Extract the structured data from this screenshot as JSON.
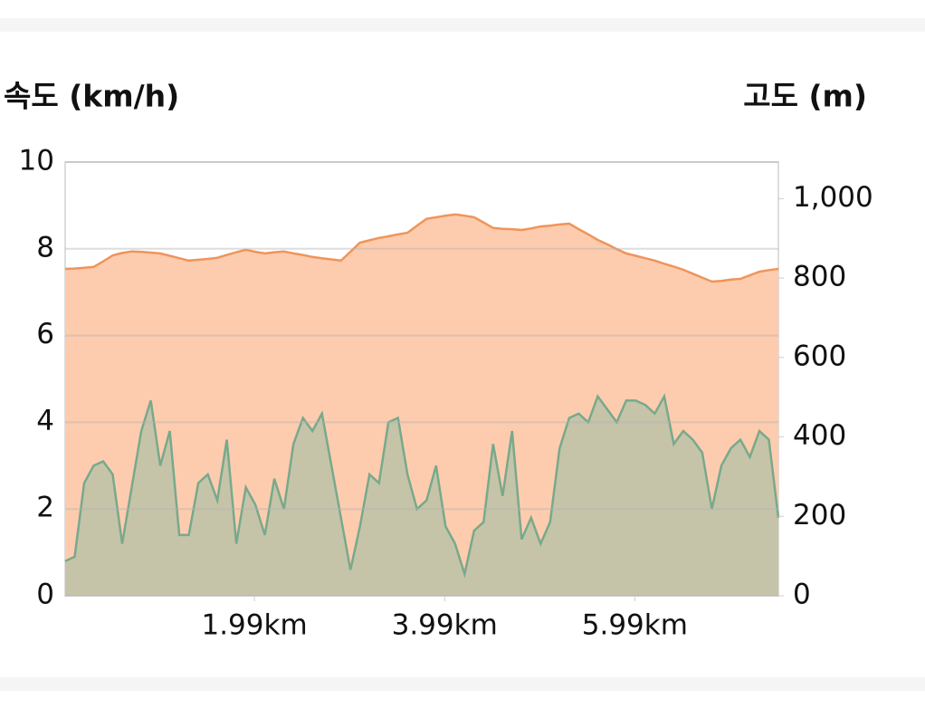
{
  "chart_data": {
    "type": "area",
    "y_label": "속도 (km/h)",
    "y2_label": "고도 (m)",
    "x": [
      0,
      0.1,
      0.2,
      0.3,
      0.4,
      0.5,
      0.6,
      0.7,
      0.8,
      0.9,
      1.0,
      1.1,
      1.2,
      1.3,
      1.4,
      1.5,
      1.6,
      1.7,
      1.8,
      1.9,
      2.0,
      2.1,
      2.2,
      2.3,
      2.4,
      2.5,
      2.6,
      2.7,
      2.8,
      2.9,
      3.0,
      3.1,
      3.2,
      3.3,
      3.4,
      3.5,
      3.6,
      3.7,
      3.8,
      3.9,
      4.0,
      4.1,
      4.2,
      4.3,
      4.4,
      4.5,
      4.6,
      4.7,
      4.8,
      4.9,
      5.0,
      5.1,
      5.2,
      5.3,
      5.4,
      5.5,
      5.6,
      5.7,
      5.8,
      5.9,
      6.0,
      6.1,
      6.2,
      6.3,
      6.4,
      6.5,
      6.6,
      6.7,
      6.8,
      6.9,
      7.0,
      7.1,
      7.2,
      7.3,
      7.4,
      7.5
    ],
    "series": [
      {
        "axis": "y2",
        "color": "#f0945a",
        "fill": "#fdccae",
        "values": [
          823,
          824,
          826,
          828,
          842,
          857,
          863,
          867,
          866,
          864,
          862,
          856,
          850,
          844,
          846,
          848,
          851,
          858,
          865,
          871,
          866,
          862,
          865,
          867,
          862,
          858,
          853,
          850,
          847,
          844,
          866,
          889,
          895,
          901,
          905,
          910,
          914,
          932,
          949,
          953,
          957,
          960,
          957,
          953,
          940,
          926,
          924,
          923,
          921,
          925,
          930,
          932,
          935,
          937,
          923,
          910,
          896,
          885,
          873,
          862,
          856,
          850,
          844,
          836,
          829,
          821,
          811,
          801,
          791,
          793,
          796,
          798,
          807,
          816,
          820,
          823
        ]
      },
      {
        "axis": "y",
        "color": "#78a98c",
        "fill": "#c5c4a8",
        "values": [
          0.8,
          0.9,
          2.6,
          3.0,
          3.1,
          2.8,
          1.2,
          2.5,
          3.8,
          4.5,
          3.0,
          3.8,
          1.4,
          1.4,
          2.6,
          2.8,
          2.2,
          3.6,
          1.2,
          2.5,
          2.1,
          1.4,
          2.7,
          2.0,
          3.5,
          4.1,
          3.8,
          4.2,
          3.0,
          1.8,
          0.6,
          1.6,
          2.8,
          2.6,
          4.0,
          4.1,
          2.8,
          2.0,
          2.2,
          3.0,
          1.6,
          1.2,
          0.5,
          1.5,
          1.7,
          3.5,
          2.3,
          3.8,
          1.3,
          1.8,
          1.2,
          1.7,
          3.4,
          4.1,
          4.2,
          4.0,
          4.6,
          4.3,
          4.0,
          4.5,
          4.5,
          4.4,
          4.2,
          4.6,
          3.5,
          3.8,
          3.6,
          3.3,
          2.0,
          3.0,
          3.4,
          3.6,
          3.2,
          3.8,
          3.6,
          1.8
        ]
      }
    ],
    "xlim": [
      0,
      7.5
    ],
    "xticks": [
      {
        "value": 1.99,
        "label": "1.99km"
      },
      {
        "value": 3.99,
        "label": "3.99km"
      },
      {
        "value": 5.99,
        "label": "5.99km"
      }
    ],
    "ylim": [
      0,
      10
    ],
    "yticks": [
      0,
      2,
      4,
      6,
      8,
      10
    ],
    "y2lim": [
      0,
      1092
    ],
    "y2ticks": [
      0,
      200,
      400,
      600,
      800,
      {
        "value": 1000,
        "label": "1,000"
      }
    ],
    "grid": true
  }
}
